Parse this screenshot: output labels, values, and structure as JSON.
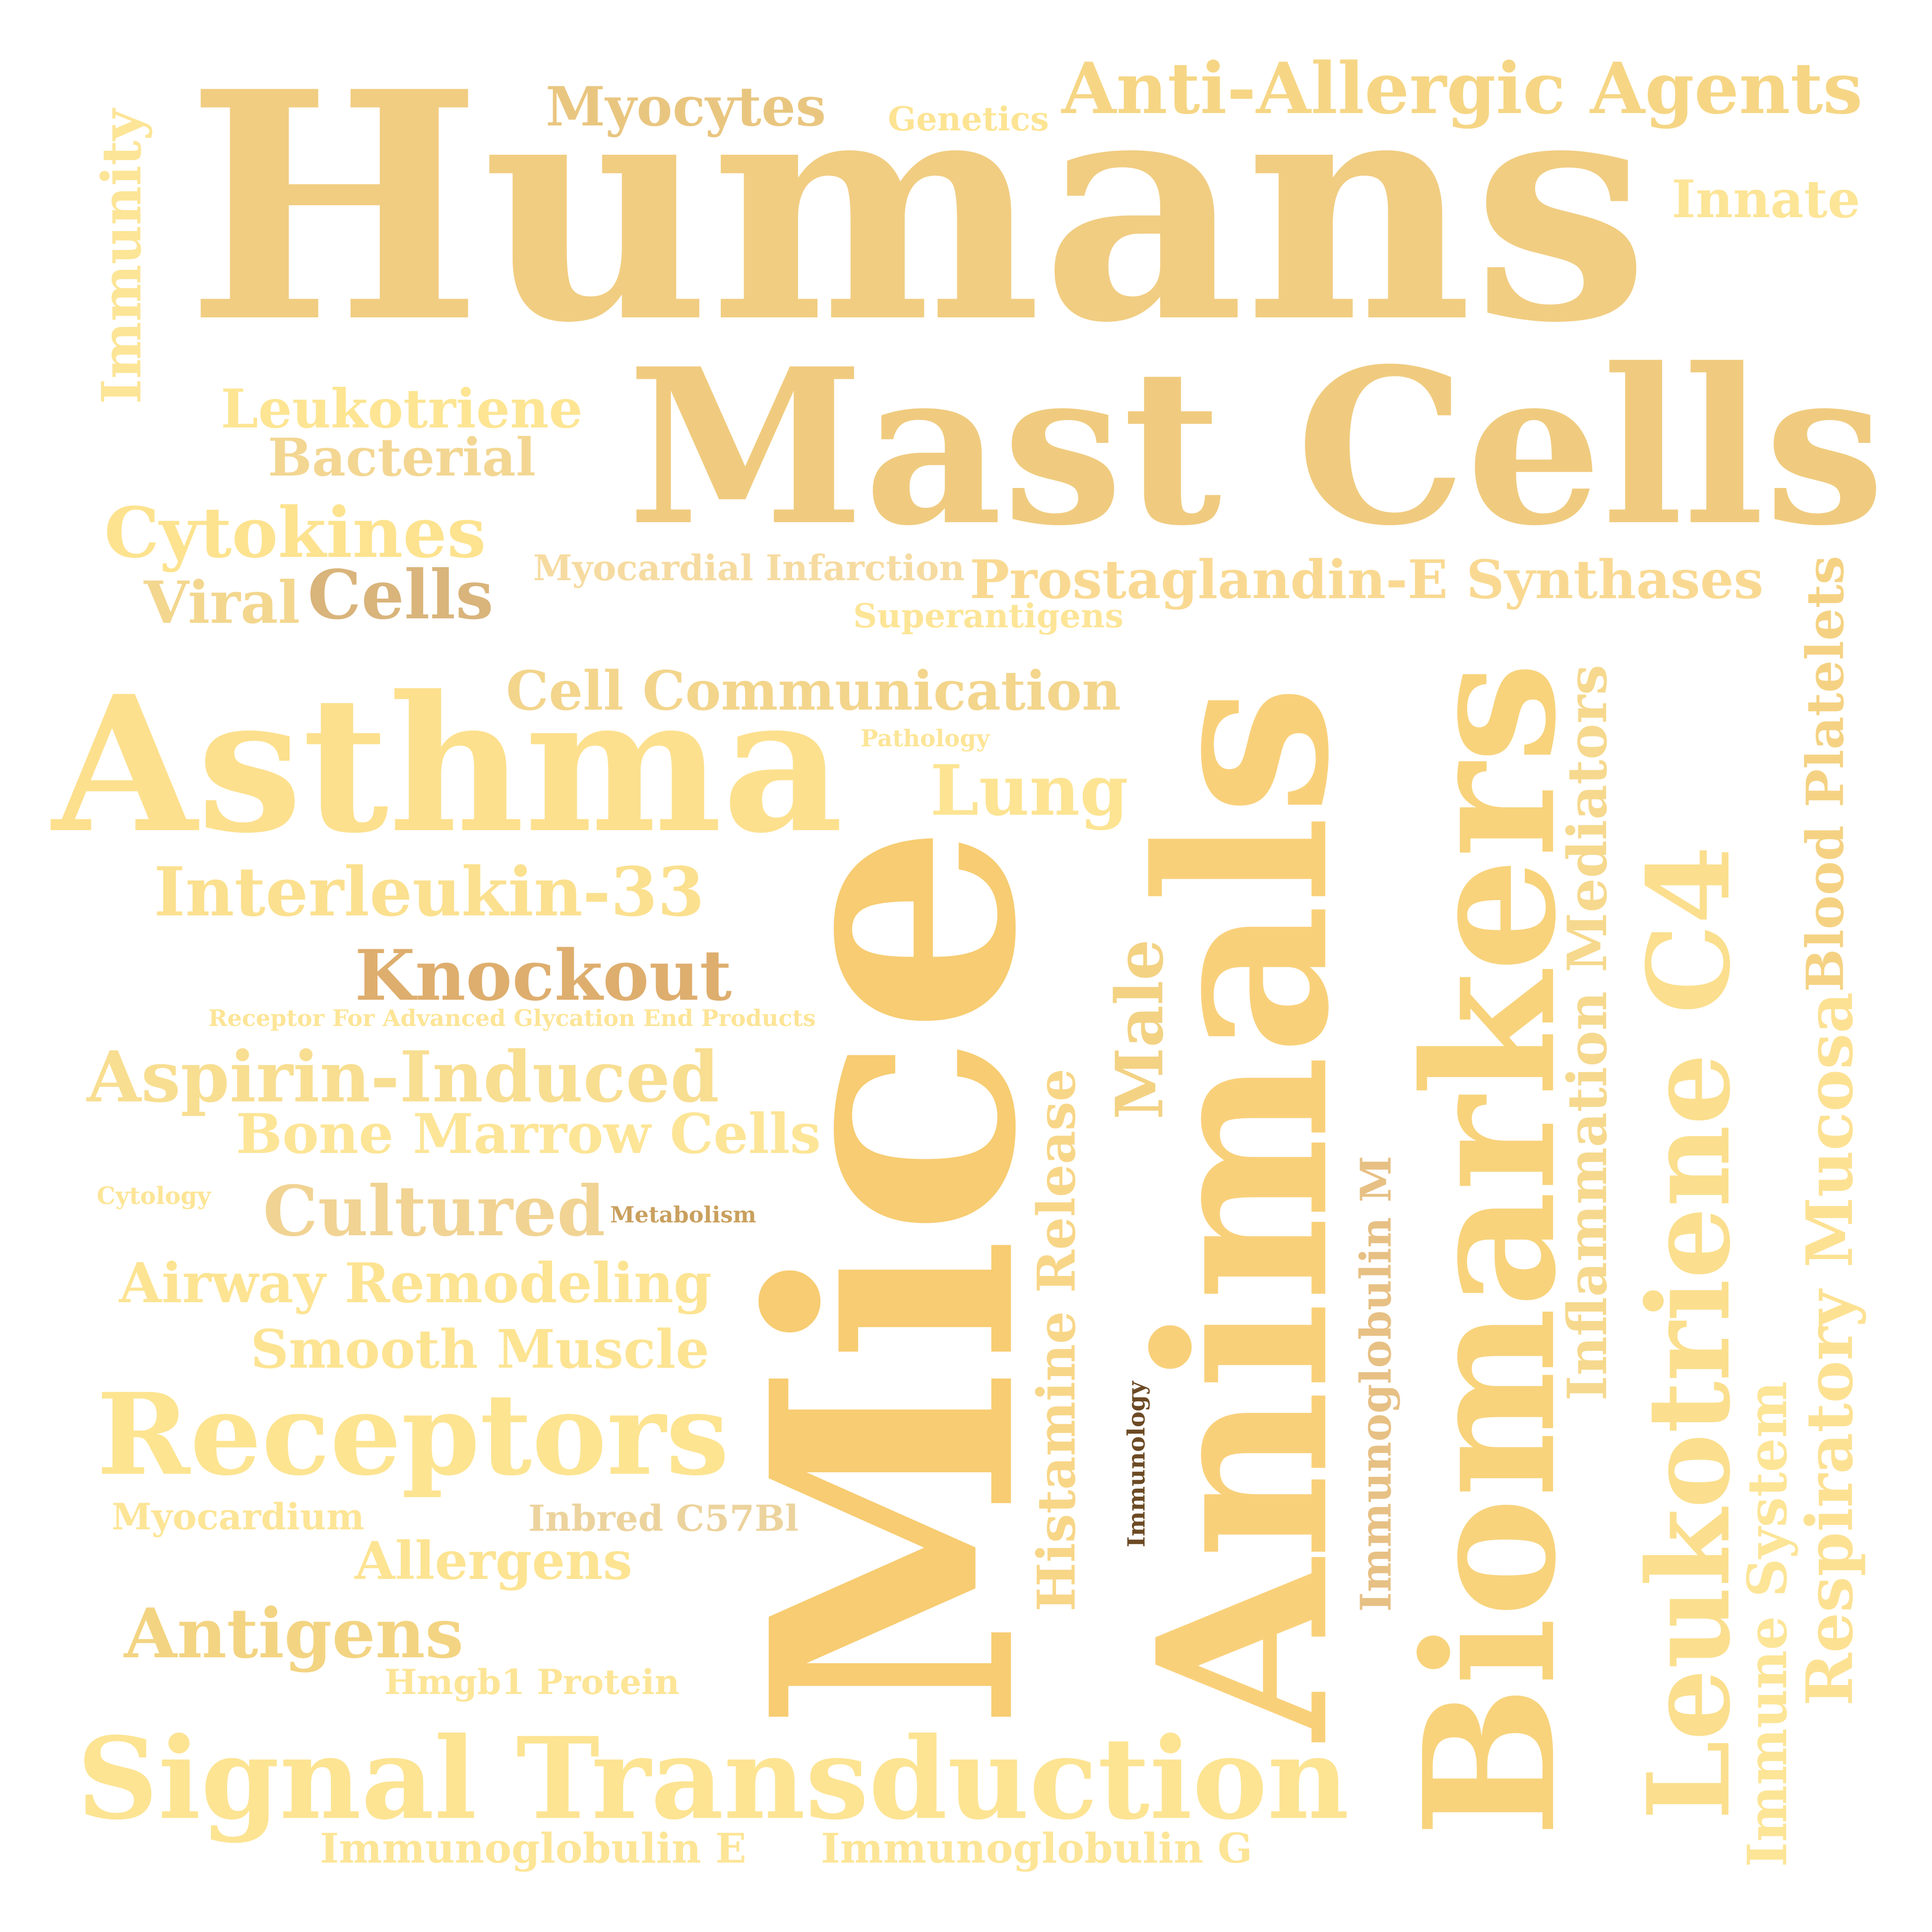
{
  "words": [
    {
      "id": "humans",
      "text": "Humans",
      "color": "#f1cd82"
    },
    {
      "id": "mast-cells",
      "text": "Mast Cells",
      "color": "#f0cb7f"
    },
    {
      "id": "mice",
      "text": "Mice",
      "color": "#f7cc72"
    },
    {
      "id": "animals",
      "text": "Animals",
      "color": "#f9d07a"
    },
    {
      "id": "biomarkers",
      "text": "Biomarkers",
      "color": "#f8d37c"
    },
    {
      "id": "asthma",
      "text": "Asthma",
      "color": "#fde08e"
    },
    {
      "id": "signal-transduction",
      "text": "Signal Transduction",
      "color": "#fde493"
    },
    {
      "id": "receptors",
      "text": "Receptors",
      "color": "#fde491"
    },
    {
      "id": "leukotriene-c4",
      "text": "Leukotriene C4",
      "color": "#fbdf8e"
    },
    {
      "id": "anti-allergic-agents",
      "text": "Anti-Allergic Agents",
      "color": "#f6d685"
    },
    {
      "id": "cytokines",
      "text": "Cytokines",
      "color": "#fde38f"
    },
    {
      "id": "prostaglandin",
      "text": "Prostaglandin-E Synthases",
      "color": "#f9d992"
    },
    {
      "id": "blood-platelets",
      "text": "Blood Platelets",
      "color": "#f5d283"
    },
    {
      "id": "interleukin-33",
      "text": "Interleukin-33",
      "color": "#fbe08f"
    },
    {
      "id": "knockout",
      "text": "Knockout",
      "color": "#deae6e"
    },
    {
      "id": "aspirin-induced",
      "text": "Aspirin-Induced",
      "color": "#f8de91"
    },
    {
      "id": "cell-communication",
      "text": "Cell Communication",
      "color": "#f3d58c"
    },
    {
      "id": "cultured",
      "text": "Cultured",
      "color": "#f1d393"
    },
    {
      "id": "lung",
      "text": "Lung",
      "color": "#fde493"
    },
    {
      "id": "histamine-release",
      "text": "Histamine Release",
      "color": "#f8d688"
    },
    {
      "id": "male",
      "text": "Male",
      "color": "#f3d283"
    },
    {
      "id": "inflammation-mediators",
      "text": "Inflammation Mediators",
      "color": "#f6d98e"
    },
    {
      "id": "respiratory-mucosa",
      "text": "Respiratory Mucosa",
      "color": "#fde193"
    },
    {
      "id": "immune-system",
      "text": "Immune System",
      "color": "#fde597"
    },
    {
      "id": "leukotriene",
      "text": "Leukotriene",
      "color": "#fde593"
    },
    {
      "id": "bacterial",
      "text": "Bacterial",
      "color": "#f3d692"
    },
    {
      "id": "cells",
      "text": "Cells",
      "color": "#d9b47b"
    },
    {
      "id": "viral",
      "text": "Viral",
      "color": "#f3d78f"
    },
    {
      "id": "myocytes",
      "text": "Myocytes",
      "color": "#e9c680"
    },
    {
      "id": "immunity",
      "text": "Immunity",
      "color": "#fde597"
    },
    {
      "id": "innate",
      "text": "Innate",
      "color": "#fde597"
    },
    {
      "id": "genetics",
      "text": "Genetics",
      "color": "#fde493"
    },
    {
      "id": "myocardial-infarction",
      "text": "Myocardial Infarction",
      "color": "#f6dba1"
    },
    {
      "id": "superantigens",
      "text": "Superantigens",
      "color": "#fde597"
    },
    {
      "id": "pathology",
      "text": "Pathology",
      "color": "#fde597"
    },
    {
      "id": "receptor-age",
      "text": "Receptor For Advanced Glycation End Products",
      "color": "#fde597"
    },
    {
      "id": "bone-marrow-cells",
      "text": "Bone Marrow Cells",
      "color": "#fde597"
    },
    {
      "id": "cytology",
      "text": "Cytology",
      "color": "#fde597"
    },
    {
      "id": "metabolism",
      "text": "Metabolism",
      "color": "#c9a05e"
    },
    {
      "id": "airway-remodeling",
      "text": "Airway Remodeling",
      "color": "#fde493"
    },
    {
      "id": "smooth-muscle",
      "text": "Smooth Muscle",
      "color": "#fde493"
    },
    {
      "id": "myocardium",
      "text": "Myocardium",
      "color": "#fde597"
    },
    {
      "id": "inbred-c57bl",
      "text": "Inbred C57Bl",
      "color": "#ecd39d"
    },
    {
      "id": "allergens",
      "text": "Allergens",
      "color": "#fde493"
    },
    {
      "id": "antigens",
      "text": "Antigens",
      "color": "#f3d482"
    },
    {
      "id": "hmgb1-protein",
      "text": "Hmgb1 Protein",
      "color": "#fde597"
    },
    {
      "id": "immunoglobulin-e",
      "text": "Immunoglobulin E",
      "color": "#fde597"
    },
    {
      "id": "immunoglobulin-g",
      "text": "Immunoglobulin G",
      "color": "#fde597"
    },
    {
      "id": "immunoglobulin-m",
      "text": "Immunoglobulin M",
      "color": "#e7c084"
    },
    {
      "id": "immunology",
      "text": "Immunology",
      "color": "#6c4a24"
    }
  ]
}
